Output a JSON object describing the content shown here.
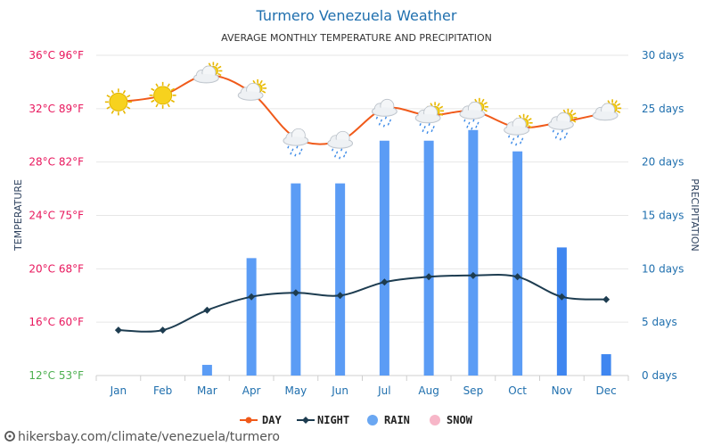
{
  "header": {
    "title": "Turmero Venezuela Weather",
    "subtitle": "AVERAGE MONTHLY TEMPERATURE AND PRECIPITATION"
  },
  "axes": {
    "left_title": "TEMPERATURE",
    "right_title": "PRECIPITATION",
    "left_ticks": [
      "12°C 53°F",
      "16°C 60°F",
      "20°C 68°F",
      "24°C 75°F",
      "28°C 82°F",
      "32°C 89°F",
      "36°C 96°F"
    ],
    "right_ticks": [
      "0 days",
      "5 days",
      "10 days",
      "15 days",
      "20 days",
      "25 days",
      "30 days"
    ]
  },
  "legend": {
    "day": "DAY",
    "night": "NIGHT",
    "rain": "RAIN",
    "snow": "SNOW"
  },
  "footer": {
    "url": "hikersbay.com/climate/venezuela/turmero"
  },
  "colors": {
    "day": "#f05a1a",
    "night": "#1d3c50",
    "rain": "#5b9cf5",
    "rain_dark": "#3f86f0",
    "snow": "#f7b6c8",
    "left_tick_warm": "#e8175d",
    "left_tick_cool": "#4caf50",
    "accent": "#1f6fae"
  },
  "chart_data": {
    "type": "bar",
    "categories": [
      "Jan",
      "Feb",
      "Mar",
      "Apr",
      "May",
      "Jun",
      "Jul",
      "Aug",
      "Sep",
      "Oct",
      "Nov",
      "Dec"
    ],
    "temperature_ylim_c": [
      12,
      36
    ],
    "precipitation_ylim_days": [
      0,
      30
    ],
    "series": [
      {
        "name": "DAY",
        "type": "line",
        "unit": "°C",
        "values": [
          32.5,
          33.0,
          34.5,
          33.2,
          29.8,
          29.6,
          32.0,
          31.5,
          31.8,
          30.6,
          31.0,
          31.7
        ],
        "weather_icons": [
          "sun",
          "sun",
          "partly-cloudy",
          "partly-cloudy",
          "rain-cloud",
          "rain-cloud",
          "rain-cloud",
          "partly-cloudy-rain",
          "partly-cloudy-rain",
          "partly-cloudy-rain",
          "partly-cloudy-rain",
          "partly-cloudy"
        ]
      },
      {
        "name": "NIGHT",
        "type": "line",
        "unit": "°C",
        "values": [
          15.4,
          15.4,
          16.9,
          17.9,
          18.2,
          18.0,
          19.0,
          19.4,
          19.5,
          19.4,
          17.9,
          17.7
        ]
      },
      {
        "name": "RAIN",
        "type": "bar",
        "unit": "days",
        "values": [
          0,
          0,
          1,
          11,
          18,
          18,
          22,
          22,
          23,
          21,
          12,
          2
        ]
      },
      {
        "name": "SNOW",
        "type": "bar",
        "unit": "days",
        "values": [
          0,
          0,
          0,
          0,
          0,
          0,
          0,
          0,
          0,
          0,
          0,
          0
        ]
      }
    ]
  }
}
